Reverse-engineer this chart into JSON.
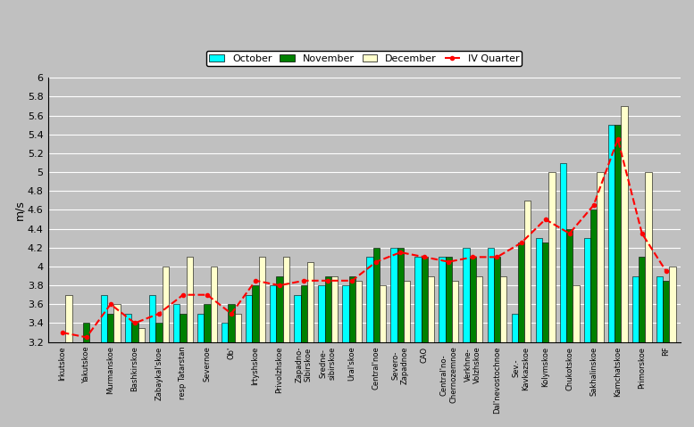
{
  "categories": [
    "Irkutskoe",
    "Yakutskoe",
    "Murmanskoe",
    "Bashkirskoe",
    "Zabaykal'skoe",
    "resp Tatarstan",
    "Severnoe",
    "Ob'",
    "Irtyshskoe",
    "Privolzhskoe",
    "Zapadno-\nSibirskoe",
    "Sredne-\nsibirskoe",
    "Ural'skoe",
    "Central'noe",
    "Severo-\nZapadnoe",
    "CAO",
    "Central'no-\nChernozemnoe",
    "Verkhne-\nVolzhskoe",
    "Dal'nevostochnoe",
    "Sev.-\nKavkazskoe",
    "Kolymskoe",
    "Chukotskoe",
    "Sakhalinskoe",
    "Kamchatskoe",
    "Primorskoe",
    "RF"
  ],
  "october": [
    3.2,
    3.1,
    3.7,
    3.5,
    3.7,
    3.6,
    3.5,
    3.4,
    3.7,
    3.8,
    3.7,
    3.8,
    3.8,
    4.1,
    4.2,
    4.1,
    4.1,
    4.2,
    4.2,
    3.5,
    4.3,
    5.1,
    4.3,
    5.5,
    3.9,
    3.9
  ],
  "november": [
    3.1,
    3.4,
    3.5,
    3.4,
    3.4,
    3.5,
    3.6,
    3.6,
    3.8,
    3.9,
    3.8,
    3.9,
    3.9,
    4.2,
    4.2,
    4.1,
    4.1,
    4.1,
    4.1,
    4.25,
    4.25,
    4.4,
    4.6,
    5.5,
    4.1,
    3.85
  ],
  "december": [
    3.7,
    3.2,
    3.6,
    3.35,
    4.0,
    4.1,
    4.0,
    3.5,
    4.1,
    4.1,
    4.05,
    3.9,
    3.85,
    3.8,
    3.85,
    3.9,
    3.85,
    3.9,
    3.9,
    4.7,
    5.0,
    3.8,
    5.0,
    5.7,
    5.0,
    4.0
  ],
  "iv_quarter": [
    3.3,
    3.25,
    3.6,
    3.4,
    3.5,
    3.7,
    3.7,
    3.5,
    3.85,
    3.8,
    3.85,
    3.85,
    3.85,
    4.05,
    4.15,
    4.1,
    4.05,
    4.1,
    4.1,
    4.25,
    4.5,
    4.35,
    4.65,
    5.35,
    4.35,
    3.95
  ],
  "bar_width": 0.27,
  "ymin": 3.2,
  "colors": {
    "october": "#00FFFF",
    "november": "#008000",
    "december": "#FFFFCC",
    "iv_quarter": "#FF0000"
  },
  "ylim": [
    3.2,
    6.0
  ],
  "yticks": [
    3.2,
    3.4,
    3.6,
    3.8,
    4.0,
    4.2,
    4.4,
    4.6,
    4.8,
    5.0,
    5.2,
    5.4,
    5.6,
    5.8,
    6.0
  ],
  "ylabel": "m/s",
  "background_color": "#C0C0C0",
  "plot_background": "#C0C0C0"
}
